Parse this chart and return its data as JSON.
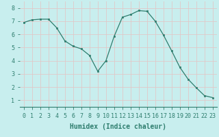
{
  "x": [
    0,
    1,
    2,
    3,
    4,
    5,
    6,
    7,
    8,
    9,
    10,
    11,
    12,
    13,
    14,
    15,
    16,
    17,
    18,
    19,
    20,
    21,
    22,
    23
  ],
  "y": [
    6.9,
    7.1,
    7.15,
    7.15,
    6.5,
    5.5,
    5.1,
    4.9,
    4.4,
    3.2,
    4.0,
    5.85,
    7.3,
    7.5,
    7.8,
    7.75,
    7.0,
    5.95,
    4.75,
    3.5,
    2.6,
    1.95,
    1.35,
    1.2
  ],
  "line_color": "#2e7d6e",
  "marker_color": "#2e7d6e",
  "bg_color": "#c8eeee",
  "grid_color": "#e0c8c8",
  "xlabel": "Humidex (Indice chaleur)",
  "xlim": [
    -0.5,
    23.5
  ],
  "ylim": [
    0.5,
    8.5
  ],
  "yticks": [
    1,
    2,
    3,
    4,
    5,
    6,
    7,
    8
  ],
  "xticks": [
    0,
    1,
    2,
    3,
    4,
    5,
    6,
    7,
    8,
    9,
    10,
    11,
    12,
    13,
    14,
    15,
    16,
    17,
    18,
    19,
    20,
    21,
    22,
    23
  ],
  "tick_color": "#2e7d6e",
  "label_fontsize": 7,
  "tick_fontsize": 6
}
